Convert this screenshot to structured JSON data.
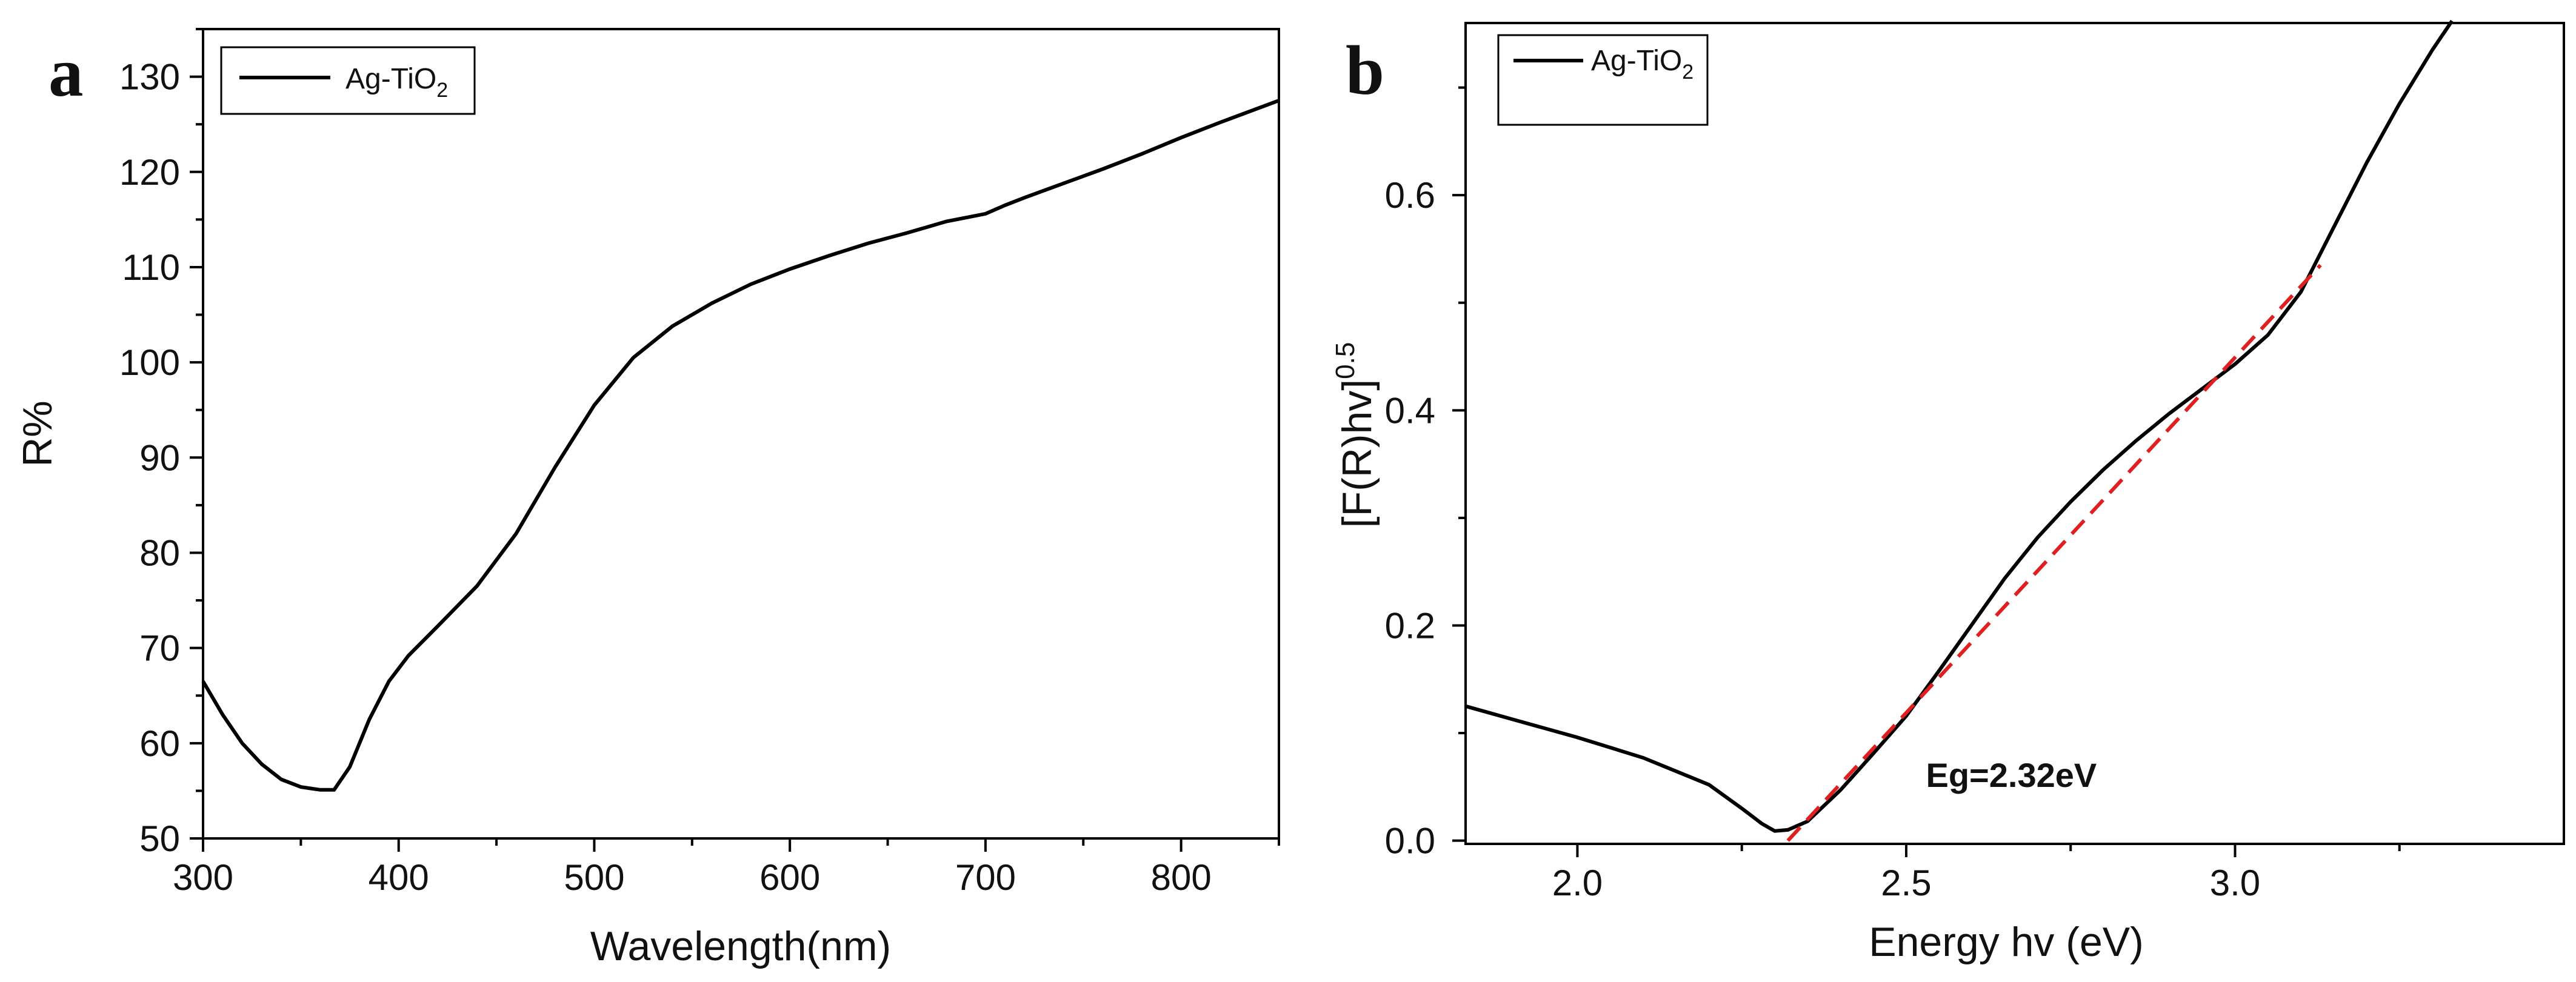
{
  "figure": {
    "panels": [
      "a",
      "b"
    ]
  },
  "chart_data": [
    {
      "panel": "a",
      "type": "line",
      "title": "",
      "xlabel": "Wavelength(nm)",
      "ylabel": "R%",
      "xlim": [
        300,
        850
      ],
      "ylim": [
        50,
        135
      ],
      "xticks": [
        300,
        400,
        500,
        600,
        700,
        800
      ],
      "yticks": [
        50,
        60,
        70,
        80,
        90,
        100,
        110,
        120,
        130
      ],
      "legend": {
        "main": "Ag-TiO",
        "sub": "2",
        "placement": "top-left"
      },
      "color": "#000000",
      "series": [
        {
          "name": "Ag-TiO2",
          "x": [
            300,
            310,
            320,
            330,
            340,
            350,
            360,
            367,
            375,
            385,
            395,
            405,
            420,
            440,
            460,
            480,
            500,
            520,
            540,
            560,
            580,
            600,
            620,
            640,
            660,
            680,
            700,
            710,
            720,
            740,
            760,
            780,
            800,
            820,
            850
          ],
          "y": [
            66.5,
            63.0,
            60.0,
            57.8,
            56.2,
            55.4,
            55.1,
            55.1,
            57.5,
            62.5,
            66.5,
            69.2,
            72.3,
            76.5,
            82.0,
            89.0,
            95.5,
            100.5,
            103.8,
            106.2,
            108.2,
            109.8,
            111.2,
            112.5,
            113.6,
            114.8,
            115.6,
            116.5,
            117.3,
            118.8,
            120.3,
            121.9,
            123.6,
            125.2,
            127.5
          ]
        }
      ]
    },
    {
      "panel": "b",
      "type": "line",
      "title": "",
      "xlabel": "Energy hv (eV)",
      "ylabel": "[F(R)hv]",
      "ylabel_sup": "0.5",
      "xlim": [
        1.83,
        3.5
      ],
      "ylim": [
        -0.003,
        0.76
      ],
      "xticks": [
        2.0,
        2.5,
        3.0
      ],
      "xtick_labels": [
        "2.0",
        "2.5",
        "3.0"
      ],
      "yticks": [
        0.0,
        0.2,
        0.4,
        0.6
      ],
      "ytick_labels": [
        "0.0",
        "0.2",
        "0.4",
        "0.6"
      ],
      "legend": {
        "main": "Ag-TiO",
        "sub": "2",
        "placement": "top-left"
      },
      "annotation": {
        "text": "Eg=2.32eV",
        "x": 2.53,
        "y": 0.05
      },
      "series": [
        {
          "name": "Ag-TiO2",
          "color": "#000000",
          "x": [
            1.83,
            1.9,
            2.0,
            2.1,
            2.2,
            2.25,
            2.28,
            2.3,
            2.32,
            2.35,
            2.4,
            2.45,
            2.5,
            2.55,
            2.6,
            2.65,
            2.7,
            2.75,
            2.8,
            2.85,
            2.9,
            2.95,
            3.0,
            3.05,
            3.1,
            3.15,
            3.2,
            3.25,
            3.3,
            3.33
          ],
          "y": [
            0.125,
            0.113,
            0.096,
            0.077,
            0.052,
            0.03,
            0.016,
            0.009,
            0.01,
            0.018,
            0.047,
            0.081,
            0.116,
            0.158,
            0.201,
            0.244,
            0.282,
            0.315,
            0.345,
            0.372,
            0.397,
            0.42,
            0.443,
            0.47,
            0.51,
            0.57,
            0.63,
            0.685,
            0.735,
            0.762
          ]
        },
        {
          "name": "Tangent fit",
          "color": "#e02020",
          "dashed": true,
          "x": [
            2.32,
            3.13
          ],
          "y": [
            0.0,
            0.535
          ]
        }
      ]
    }
  ]
}
